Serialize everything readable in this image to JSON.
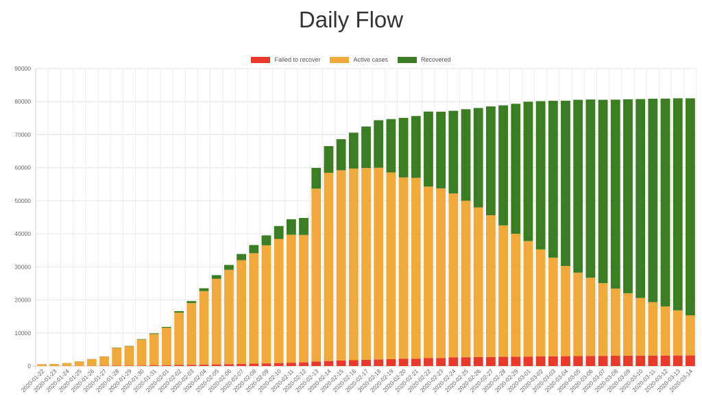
{
  "chart_data": {
    "type": "bar",
    "stacked": true,
    "title": "Daily Flow",
    "legend_position": "top",
    "grid": true,
    "ylim": [
      0,
      90000
    ],
    "yticks": [
      0,
      10000,
      20000,
      30000,
      40000,
      50000,
      60000,
      70000,
      80000,
      90000
    ],
    "categories": [
      "2020-01-22",
      "2020-01-23",
      "2020-01-24",
      "2020-01-25",
      "2020-01-26",
      "2020-01-27",
      "2020-01-28",
      "2020-01-29",
      "2020-01-30",
      "2020-01-31",
      "2020-02-01",
      "2020-02-02",
      "2020-02-03",
      "2020-02-04",
      "2020-02-05",
      "2020-02-06",
      "2020-02-07",
      "2020-02-08",
      "2020-02-09",
      "2020-02-10",
      "2020-02-11",
      "2020-02-12",
      "2020-02-13",
      "2020-02-14",
      "2020-02-15",
      "2020-02-16",
      "2020-02-17",
      "2020-02-18",
      "2020-02-19",
      "2020-02-20",
      "2020-02-21",
      "2020-02-22",
      "2020-02-23",
      "2020-02-24",
      "2020-02-25",
      "2020-02-26",
      "2020-02-27",
      "2020-02-28",
      "2020-02-29",
      "2020-03-01",
      "2020-03-02",
      "2020-03-03",
      "2020-03-04",
      "2020-03-05",
      "2020-03-06",
      "2020-03-07",
      "2020-03-08",
      "2020-03-09",
      "2020-03-10",
      "2020-03-11",
      "2020-03-12",
      "2020-03-13",
      "2020-03-14"
    ],
    "series": [
      {
        "name": "Failed to recover",
        "color": "#e8392b",
        "values": [
          17,
          18,
          26,
          42,
          56,
          82,
          131,
          133,
          171,
          213,
          259,
          304,
          361,
          425,
          490,
          562,
          632,
          717,
          804,
          904,
          1011,
          1111,
          1367,
          1520,
          1662,
          1765,
          1863,
          2002,
          2114,
          2236,
          2236,
          2441,
          2443,
          2593,
          2663,
          2715,
          2744,
          2788,
          2835,
          2870,
          2912,
          2947,
          2983,
          3015,
          3044,
          3072,
          3100,
          3123,
          3139,
          3161,
          3172,
          3180,
          3193
        ]
      },
      {
        "name": "Active cases",
        "color": "#f2a93b",
        "values": [
          510,
          571,
          843,
          1320,
          2016,
          2788,
          5346,
          5840,
          7857,
          9452,
          11301,
          15849,
          18678,
          22258,
          25893,
          28539,
          31396,
          33427,
          35725,
          37559,
          38727,
          38546,
          52284,
          56962,
          57570,
          57981,
          58042,
          57981,
          56455,
          54820,
          54698,
          51846,
          51305,
          49604,
          47355,
          45268,
          42876,
          39756,
          37185,
          34935,
          32369,
          29841,
          27277,
          25244,
          23676,
          21999,
          20343,
          18898,
          17467,
          16164,
          14851,
          13659,
          12142
        ]
      },
      {
        "name": "Recovered",
        "color": "#3a7d22",
        "values": [
          28,
          30,
          36,
          39,
          49,
          58,
          101,
          120,
          135,
          214,
          275,
          463,
          614,
          843,
          1115,
          1477,
          1864,
          2470,
          3000,
          3900,
          4683,
          5150,
          6295,
          8058,
          9395,
          10865,
          12561,
          14387,
          16150,
          18014,
          18704,
          22699,
          23187,
          25015,
          27676,
          30084,
          32930,
          36329,
          39320,
          42162,
          44854,
          47450,
          50001,
          52292,
          53913,
          55477,
          57143,
          58684,
          60162,
          61550,
          62887,
          64170,
          65660
        ]
      }
    ]
  }
}
